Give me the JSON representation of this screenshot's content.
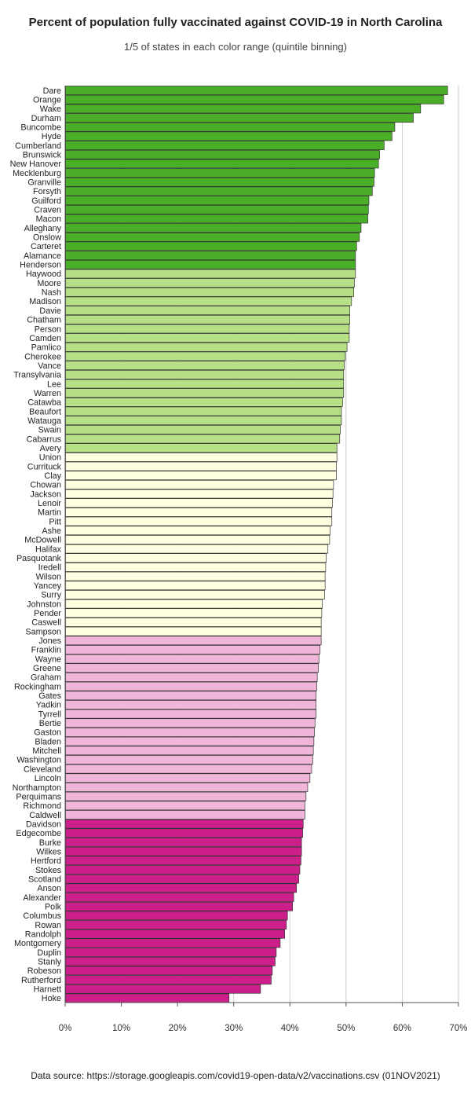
{
  "title": "Percent of population fully vaccinated against COVID-19 in North Carolina",
  "subtitle": "1/5 of states in each color range (quintile binning)",
  "source": "Data source: https://storage.googleapis.com/covid19-open-data/v2/vaccinations.csv (01NOV2021)",
  "colors": {
    "bins": [
      "#4aae29",
      "#b6e085",
      "#fffee0",
      "#f0b6da",
      "#cd1f8a"
    ],
    "bar_stroke": "#333333",
    "grid": "#cccccc"
  },
  "chart_data": {
    "type": "bar",
    "orientation": "horizontal",
    "title": "Percent of population fully vaccinated against COVID-19 in North Carolina",
    "subtitle": "1/5 of states in each color range (quintile binning)",
    "xlabel": "",
    "ylabel": "",
    "xlim": [
      0,
      70
    ],
    "x_ticks": [
      0,
      10,
      20,
      30,
      40,
      50,
      60,
      70
    ],
    "x_tick_labels": [
      "0%",
      "10%",
      "20%",
      "30%",
      "40%",
      "50%",
      "60%",
      "70%"
    ],
    "grid": "vertical",
    "categories": [
      "Dare",
      "Orange",
      "Wake",
      "Durham",
      "Buncombe",
      "Hyde",
      "Cumberland",
      "Brunswick",
      "New Hanover",
      "Mecklenburg",
      "Granville",
      "Forsyth",
      "Guilford",
      "Craven",
      "Macon",
      "Alleghany",
      "Onslow",
      "Carteret",
      "Alamance",
      "Henderson",
      "Haywood",
      "Moore",
      "Nash",
      "Madison",
      "Davie",
      "Chatham",
      "Person",
      "Camden",
      "Pamlico",
      "Cherokee",
      "Vance",
      "Transylvania",
      "Lee",
      "Warren",
      "Catawba",
      "Beaufort",
      "Watauga",
      "Swain",
      "Cabarrus",
      "Avery",
      "Union",
      "Currituck",
      "Clay",
      "Chowan",
      "Jackson",
      "Lenoir",
      "Martin",
      "Pitt",
      "Ashe",
      "McDowell",
      "Halifax",
      "Pasquotank",
      "Iredell",
      "Wilson",
      "Yancey",
      "Surry",
      "Johnston",
      "Pender",
      "Caswell",
      "Sampson",
      "Jones",
      "Franklin",
      "Wayne",
      "Greene",
      "Graham",
      "Rockingham",
      "Gates",
      "Yadkin",
      "Tyrrell",
      "Bertie",
      "Gaston",
      "Bladen",
      "Mitchell",
      "Washington",
      "Cleveland",
      "Lincoln",
      "Northampton",
      "Perquimans",
      "Richmond",
      "Caldwell",
      "Davidson",
      "Edgecombe",
      "Burke",
      "Wilkes",
      "Hertford",
      "Stokes",
      "Scotland",
      "Anson",
      "Alexander",
      "Polk",
      "Columbus",
      "Rowan",
      "Randolph",
      "Montgomery",
      "Duplin",
      "Stanly",
      "Robeson",
      "Rutherford",
      "Harnett",
      "Hoke"
    ],
    "values": [
      68.0,
      67.3,
      63.2,
      61.9,
      58.6,
      58.1,
      56.7,
      55.9,
      55.7,
      55.0,
      54.9,
      54.6,
      54.0,
      53.9,
      53.8,
      52.6,
      52.3,
      51.8,
      51.6,
      51.6,
      51.6,
      51.4,
      51.3,
      50.9,
      50.6,
      50.6,
      50.5,
      50.5,
      50.1,
      49.8,
      49.6,
      49.5,
      49.5,
      49.5,
      49.3,
      49.1,
      49.1,
      48.9,
      48.8,
      48.3,
      48.3,
      48.2,
      48.2,
      47.7,
      47.6,
      47.5,
      47.4,
      47.4,
      47.1,
      47.0,
      46.7,
      46.4,
      46.3,
      46.2,
      46.2,
      46.1,
      45.7,
      45.6,
      45.5,
      45.5,
      45.5,
      45.3,
      45.1,
      45.0,
      44.8,
      44.7,
      44.6,
      44.6,
      44.6,
      44.4,
      44.3,
      44.2,
      44.1,
      44.0,
      43.8,
      43.5,
      43.1,
      42.8,
      42.6,
      42.6,
      42.3,
      42.2,
      42.0,
      42.0,
      41.9,
      41.7,
      41.5,
      41.1,
      40.6,
      40.4,
      39.5,
      39.3,
      39.0,
      38.2,
      37.5,
      37.3,
      36.8,
      36.6,
      34.7,
      29.1
    ],
    "bin_index": [
      0,
      0,
      0,
      0,
      0,
      0,
      0,
      0,
      0,
      0,
      0,
      0,
      0,
      0,
      0,
      0,
      0,
      0,
      0,
      0,
      1,
      1,
      1,
      1,
      1,
      1,
      1,
      1,
      1,
      1,
      1,
      1,
      1,
      1,
      1,
      1,
      1,
      1,
      1,
      1,
      2,
      2,
      2,
      2,
      2,
      2,
      2,
      2,
      2,
      2,
      2,
      2,
      2,
      2,
      2,
      2,
      2,
      2,
      2,
      2,
      3,
      3,
      3,
      3,
      3,
      3,
      3,
      3,
      3,
      3,
      3,
      3,
      3,
      3,
      3,
      3,
      3,
      3,
      3,
      3,
      4,
      4,
      4,
      4,
      4,
      4,
      4,
      4,
      4,
      4,
      4,
      4,
      4,
      4,
      4,
      4,
      4,
      4,
      4,
      4
    ]
  }
}
